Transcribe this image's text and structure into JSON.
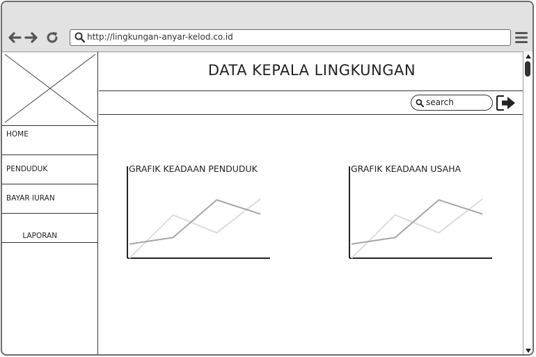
{
  "browser": {
    "url": "http://lingkungan-anyar-kelod.co.id"
  },
  "header": {
    "title": "DATA KEPALA LINGKUNGAN"
  },
  "search": {
    "placeholder": "search"
  },
  "sidebar": {
    "items": [
      {
        "label": "HOME"
      },
      {
        "label": "PENDUDUK"
      },
      {
        "label": "BAYAR IURAN"
      },
      {
        "label": " LAPORAN"
      }
    ]
  },
  "icons": {
    "back": "arrow-left-icon",
    "forward": "arrow-right-icon",
    "reload": "reload-icon",
    "search": "search-icon",
    "menu": "hamburger-menu-icon",
    "logout": "logout-icon",
    "logo_placeholder": "image-placeholder-icon"
  },
  "colors": {
    "chrome": "#e2e2e2",
    "border": "#333333",
    "line_dark": "#a6a6a6",
    "line_light": "#dcdcdc"
  },
  "chart_data": [
    {
      "type": "line",
      "title": "GRAFIK KEADAAN PENDUDUK",
      "xlabel": "",
      "ylabel": "",
      "x": [
        0,
        1,
        2,
        3
      ],
      "series": [
        {
          "values": [
            1.5,
            2.2,
            6.2,
            4.7
          ],
          "color": "#a6a6a6"
        },
        {
          "values": [
            0.0,
            4.6,
            2.7,
            6.3
          ],
          "color": "#dcdcdc"
        }
      ],
      "ylim": [
        0,
        8
      ],
      "grid": false
    },
    {
      "type": "line",
      "title": "GRAFIK KEADAAN USAHA",
      "xlabel": "",
      "ylabel": "",
      "x": [
        0,
        1,
        2,
        3
      ],
      "series": [
        {
          "values": [
            1.5,
            2.2,
            6.2,
            4.7
          ],
          "color": "#a6a6a6"
        },
        {
          "values": [
            0.0,
            4.6,
            2.7,
            6.3
          ],
          "color": "#dcdcdc"
        }
      ],
      "ylim": [
        0,
        8
      ],
      "grid": false
    }
  ]
}
